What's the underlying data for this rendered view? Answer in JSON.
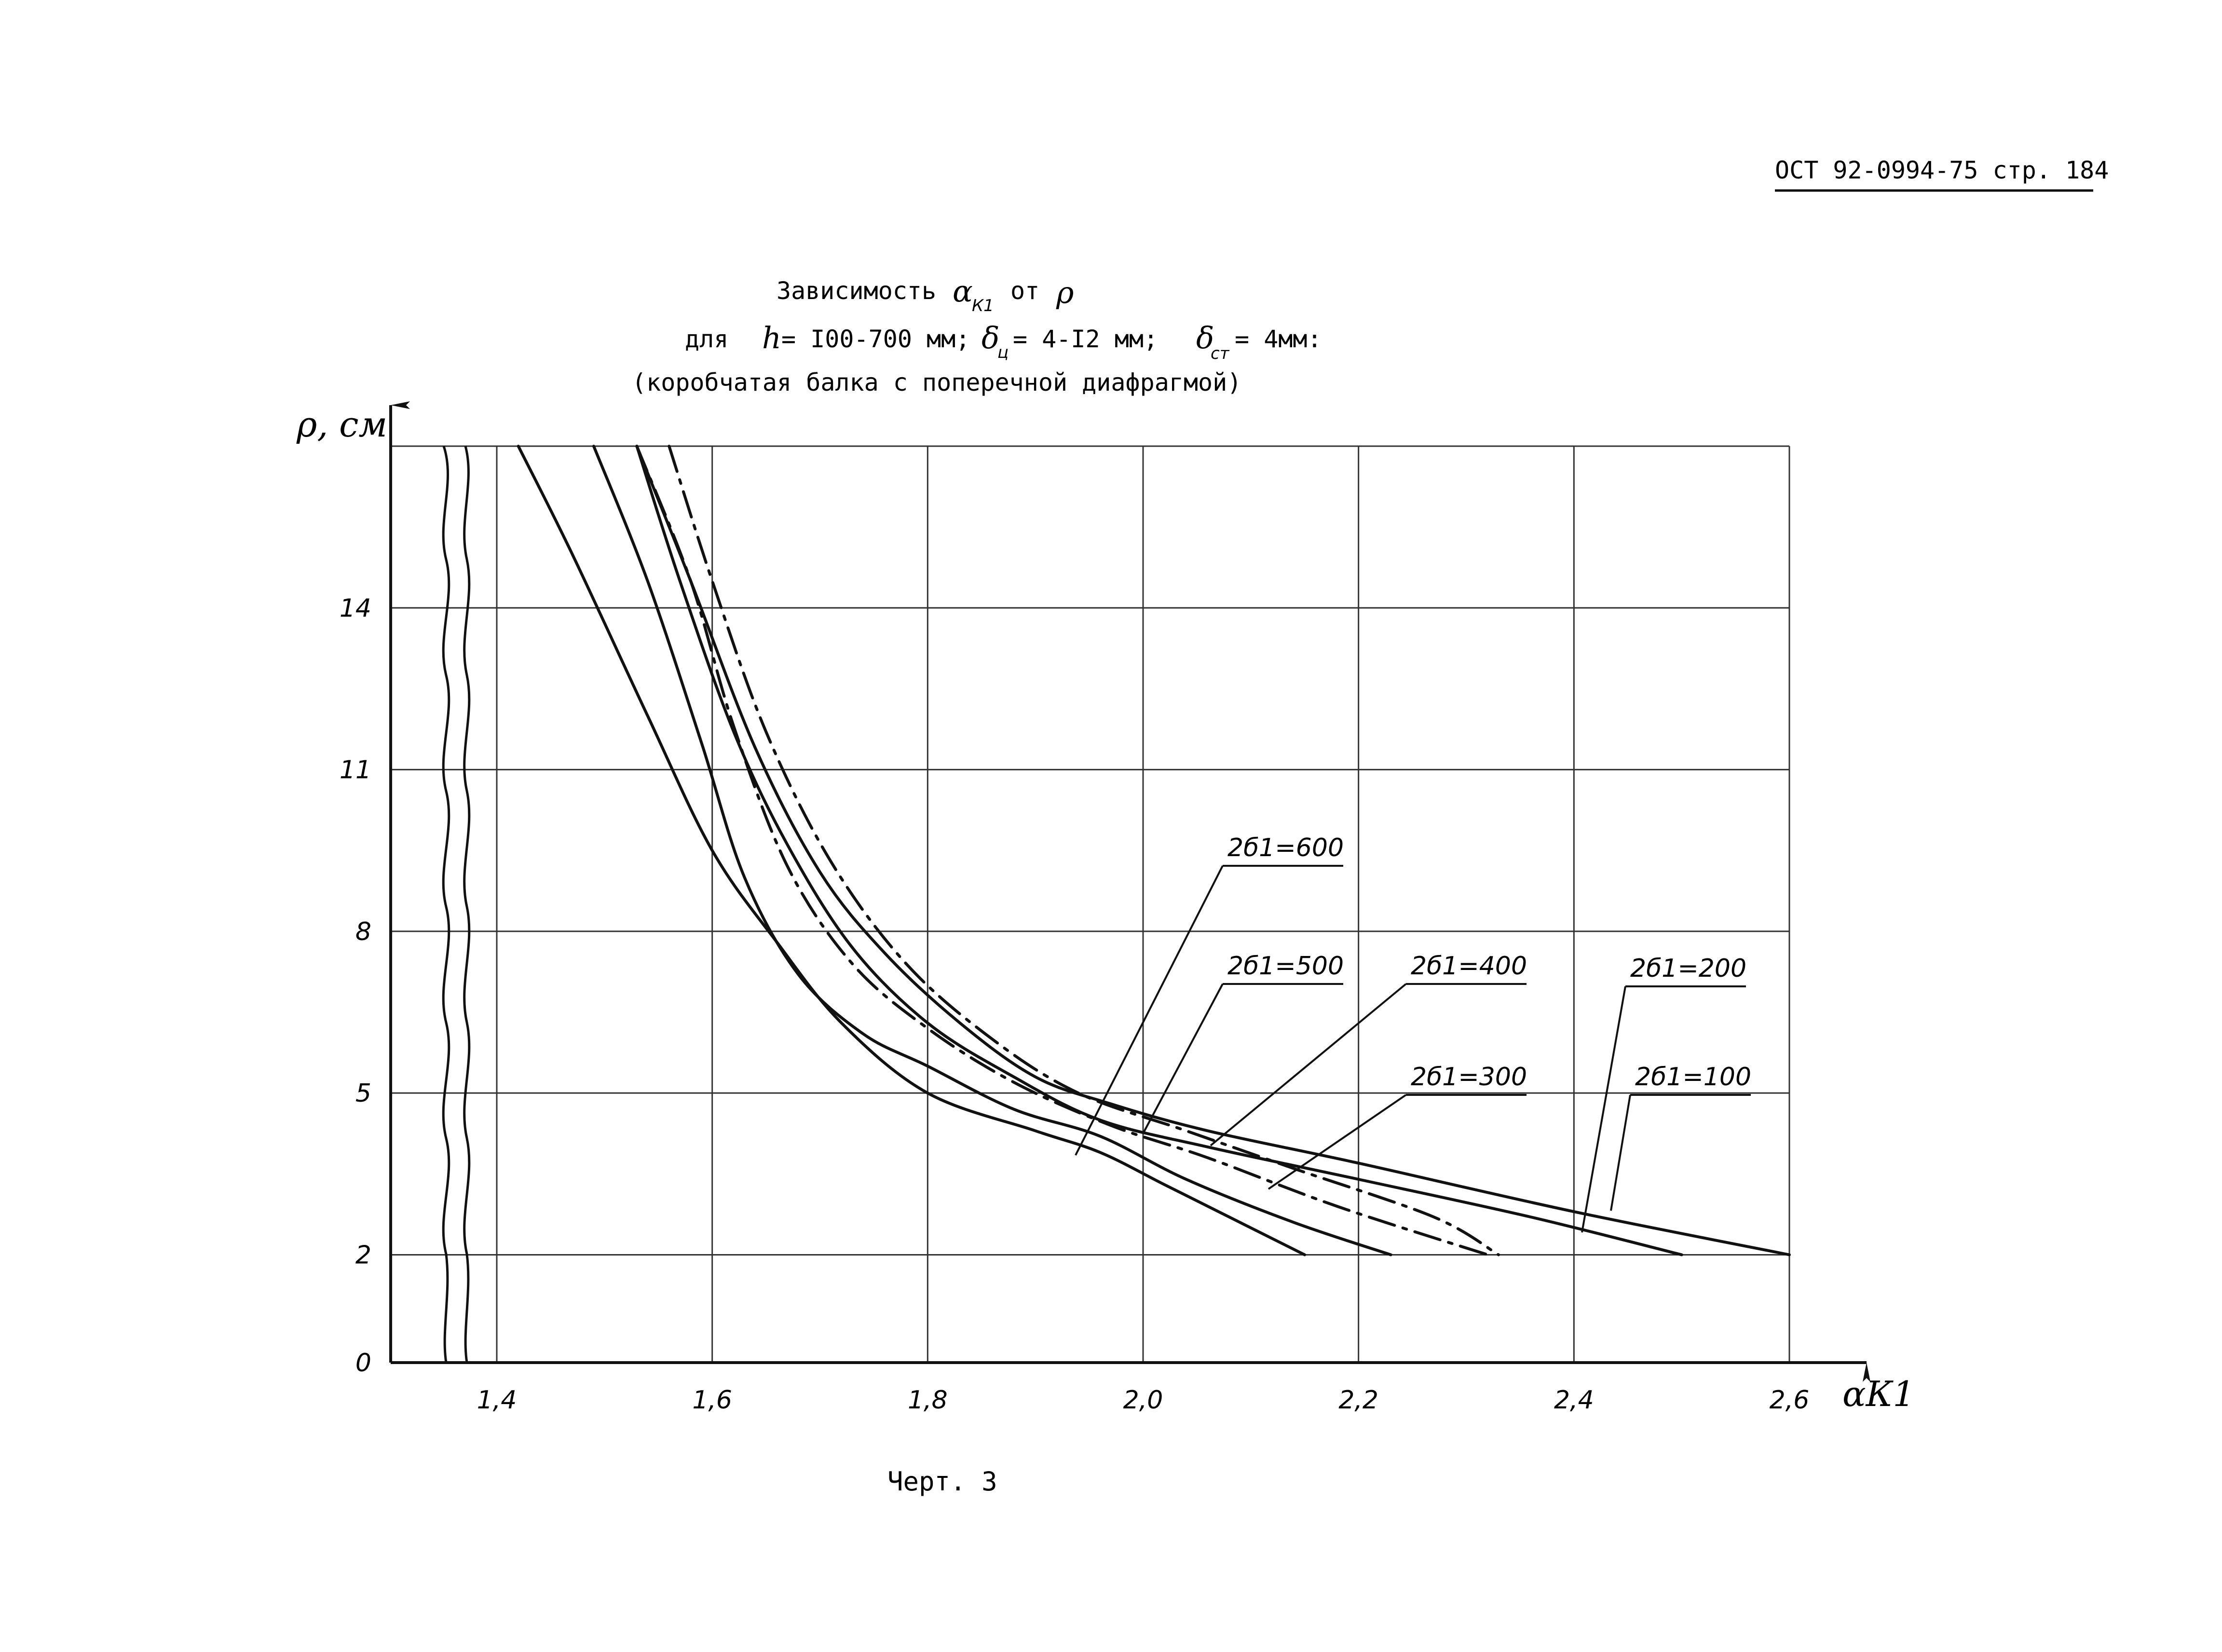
{
  "header": {
    "doc_code": "ОСТ 92-0994-75 стр. 184"
  },
  "title": {
    "prefix": "Зависимость",
    "alpha": "α",
    "alpha_sub": "К1",
    "middle": "от",
    "rho": "ρ",
    "line2_prefix": "для",
    "h_sym": "h",
    "h_val": "= I00-700 мм;",
    "delta_c": "δ",
    "delta_c_sub": "ц",
    "delta_c_val": "= 4-I2 мм;",
    "delta_st": "δ",
    "delta_st_sub": "ст",
    "delta_st_val": "= 4мм:",
    "line3": "(коробчатая балка с поперечной  диафрагмой)"
  },
  "caption": "Черт. 3",
  "chart_data": {
    "type": "line",
    "title": "Зависимость αК1 от ρ",
    "xlabel": "αК1",
    "ylabel": "ρ, см",
    "xlim": [
      1.4,
      2.6
    ],
    "ylim": [
      0,
      17
    ],
    "x_ticks": [
      1.4,
      1.6,
      1.8,
      2.0,
      2.2,
      2.4,
      2.6
    ],
    "x_tick_labels": [
      "1,4",
      "1,6",
      "1,8",
      "2,0",
      "2,2",
      "2,4",
      "2,6"
    ],
    "y_ticks": [
      0,
      2,
      5,
      8,
      11,
      14
    ],
    "y_tick_labels": [
      "0",
      "2",
      "5",
      "8",
      "11",
      "14"
    ],
    "grid": true,
    "axis_break": "x between 1.27 and 1.40",
    "series": [
      {
        "name": "2б1=600",
        "style": "solid",
        "points": [
          [
            1.42,
            17
          ],
          [
            1.47,
            15
          ],
          [
            1.54,
            12
          ],
          [
            1.6,
            9.5
          ],
          [
            1.66,
            7.8
          ],
          [
            1.72,
            6.3
          ],
          [
            1.8,
            5.0
          ],
          [
            1.9,
            4.3
          ],
          [
            1.96,
            3.9
          ],
          [
            2.02,
            3.3
          ],
          [
            2.08,
            2.7
          ],
          [
            2.15,
            2.0
          ]
        ]
      },
      {
        "name": "2б1=500",
        "style": "solid",
        "points": [
          [
            1.49,
            17
          ],
          [
            1.54,
            14.5
          ],
          [
            1.59,
            11.5
          ],
          [
            1.63,
            9.0
          ],
          [
            1.68,
            7.2
          ],
          [
            1.74,
            6.1
          ],
          [
            1.8,
            5.5
          ],
          [
            1.88,
            4.7
          ],
          [
            1.96,
            4.2
          ],
          [
            2.04,
            3.4
          ],
          [
            2.14,
            2.6
          ],
          [
            2.23,
            2.0
          ]
        ]
      },
      {
        "name": "2б1=400",
        "style": "dashdot",
        "points": [
          [
            1.53,
            17
          ],
          [
            1.58,
            14.5
          ],
          [
            1.62,
            11.8
          ],
          [
            1.67,
            9.2
          ],
          [
            1.73,
            7.4
          ],
          [
            1.8,
            6.2
          ],
          [
            1.88,
            5.2
          ],
          [
            1.97,
            4.4
          ],
          [
            2.06,
            3.8
          ],
          [
            2.18,
            2.9
          ],
          [
            2.32,
            2.0
          ]
        ]
      },
      {
        "name": "2б1=300",
        "style": "dashdot",
        "points": [
          [
            1.56,
            17
          ],
          [
            1.6,
            14.5
          ],
          [
            1.65,
            11.7
          ],
          [
            1.71,
            9.3
          ],
          [
            1.78,
            7.4
          ],
          [
            1.86,
            6.0
          ],
          [
            1.94,
            5.0
          ],
          [
            2.04,
            4.3
          ],
          [
            2.14,
            3.6
          ],
          [
            2.27,
            2.7
          ],
          [
            2.33,
            2.0
          ]
        ]
      },
      {
        "name": "2б1=200",
        "style": "solid",
        "points": [
          [
            1.53,
            17
          ],
          [
            1.57,
            14.5
          ],
          [
            1.62,
            11.7
          ],
          [
            1.67,
            9.6
          ],
          [
            1.73,
            7.7
          ],
          [
            1.8,
            6.3
          ],
          [
            1.88,
            5.3
          ],
          [
            1.96,
            4.5
          ],
          [
            2.06,
            4.0
          ],
          [
            2.2,
            3.4
          ],
          [
            2.36,
            2.7
          ],
          [
            2.5,
            2.0
          ]
        ]
      },
      {
        "name": "2б1=100",
        "style": "solid",
        "points": [
          [
            1.53,
            17
          ],
          [
            1.58,
            14.5
          ],
          [
            1.64,
            11.4
          ],
          [
            1.7,
            9.1
          ],
          [
            1.76,
            7.6
          ],
          [
            1.83,
            6.3
          ],
          [
            1.9,
            5.3
          ],
          [
            1.97,
            4.8
          ],
          [
            2.06,
            4.3
          ],
          [
            2.2,
            3.7
          ],
          [
            2.4,
            2.8
          ],
          [
            2.6,
            2.0
          ]
        ]
      }
    ],
    "legend_labels": [
      {
        "text": "2б1=600",
        "series": "2б1=600"
      },
      {
        "text": "2б1=500",
        "series": "2б1=500"
      },
      {
        "text": "2б1=400",
        "series": "2б1=400"
      },
      {
        "text": "2б1=300",
        "series": "2б1=300"
      },
      {
        "text": "2б1=200",
        "series": "2б1=200"
      },
      {
        "text": "2б1=100",
        "series": "2б1=100"
      }
    ]
  }
}
